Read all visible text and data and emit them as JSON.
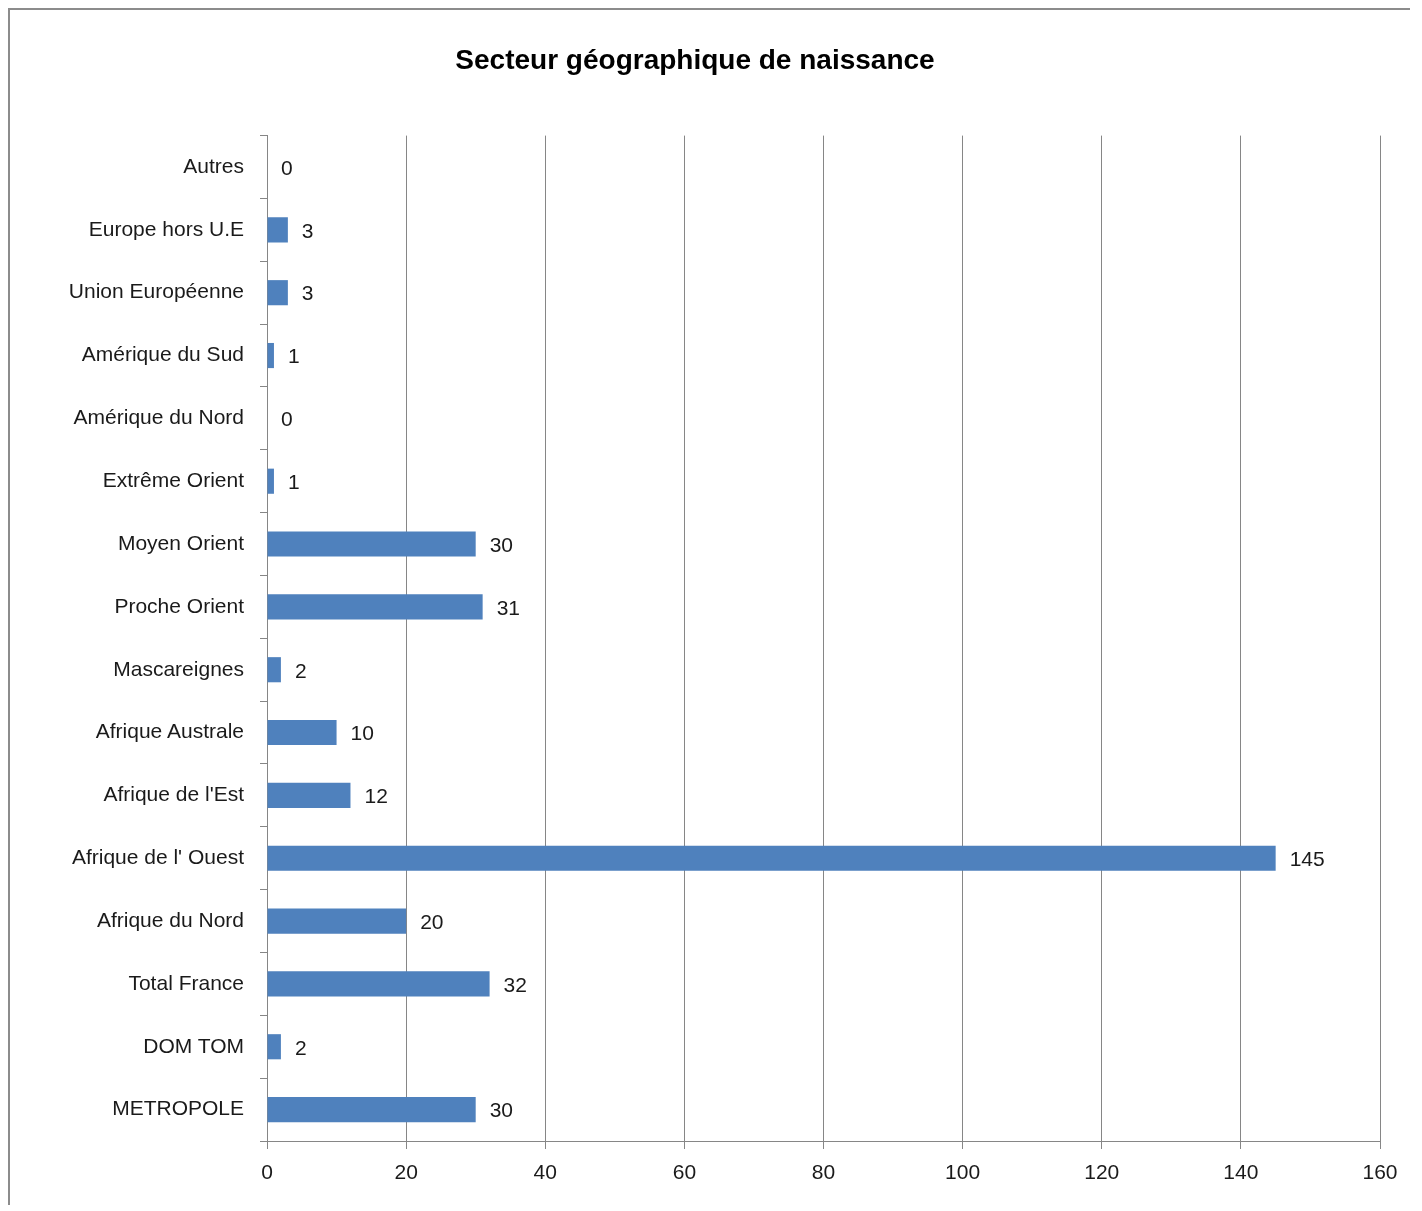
{
  "chart_data": {
    "type": "bar",
    "orientation": "horizontal",
    "title": "Secteur géographique de naissance",
    "categories": [
      "Autres",
      "Europe hors U.E",
      "Union Européenne",
      "Amérique du Sud",
      "Amérique du Nord",
      "Extrême Orient",
      "Moyen Orient",
      "Proche Orient",
      "Mascareignes",
      "Afrique Australe",
      "Afrique de l'Est",
      "Afrique de l' Ouest",
      "Afrique du Nord",
      "Total France",
      "DOM TOM",
      "METROPOLE"
    ],
    "values": [
      0,
      3,
      3,
      1,
      0,
      1,
      30,
      31,
      2,
      10,
      12,
      145,
      20,
      32,
      2,
      30
    ],
    "color": "#4f81bd",
    "xlim": [
      0,
      160
    ],
    "xticks": [
      0,
      20,
      40,
      60,
      80,
      100,
      120,
      140,
      160
    ],
    "grid": "x",
    "data_labels": true
  }
}
